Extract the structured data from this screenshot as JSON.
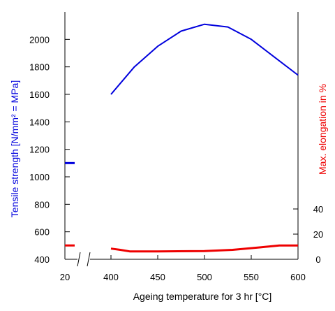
{
  "chart_data": {
    "type": "line",
    "xlabel": "Ageing temperature for 3 hr    [°C]",
    "ylabel_left": "Tensile strength [N/mm² = MPa]",
    "ylabel_right": "Max. elongation in %",
    "xlim": [
      400,
      600
    ],
    "ylim_left": [
      400,
      2200
    ],
    "ylim_right": [
      0,
      100
    ],
    "x_ticks": [
      20,
      400,
      450,
      500,
      550,
      600
    ],
    "y_ticks_left": [
      400,
      600,
      800,
      1000,
      1200,
      1400,
      1600,
      1800,
      2000
    ],
    "y_ticks_right": [
      0,
      20,
      40
    ],
    "x_axis_break": true,
    "colors": {
      "strength": "#0000dd",
      "elongation": "#ee0000",
      "axis": "#000000"
    },
    "series": [
      {
        "axis": "left",
        "color": "#0000dd",
        "x": [
          400,
          425,
          450,
          475,
          500,
          525,
          550,
          575,
          600
        ],
        "values": [
          1600,
          1800,
          1950,
          2060,
          2110,
          2090,
          2000,
          1870,
          1740
        ]
      },
      {
        "axis": "right",
        "color": "#ee0000",
        "x": [
          400,
          410,
          420,
          450,
          500,
          530,
          560,
          580,
          600
        ],
        "values": [
          8.5,
          7.5,
          6.3,
          6.3,
          6.5,
          7.5,
          9.5,
          11,
          11
        ]
      }
    ],
    "reference_marks": [
      {
        "axis": "left",
        "x": 20,
        "value": 1100,
        "color": "#0000dd"
      },
      {
        "axis": "right",
        "x": 20,
        "value": 11,
        "color": "#ee0000"
      }
    ]
  }
}
